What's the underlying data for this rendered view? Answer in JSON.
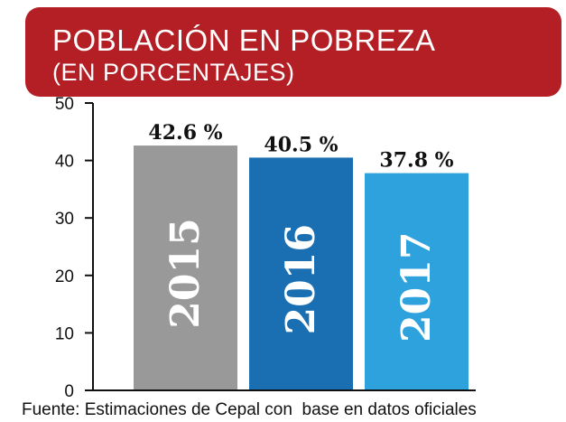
{
  "chart_data": {
    "type": "bar",
    "title": "POBLACIÓN EN POBREZA",
    "subtitle": "(EN PORCENTAJES)",
    "categories": [
      "2015",
      "2016",
      "2017"
    ],
    "values": [
      42.6,
      40.5,
      37.8
    ],
    "value_labels": [
      "42.6 %",
      "40.5 %",
      "37.8 %"
    ],
    "bar_colors": [
      "#999999",
      "#1a6fb3",
      "#2ea2dd"
    ],
    "ylim": [
      0,
      50
    ],
    "yticks": [
      0,
      10,
      20,
      30,
      40,
      50
    ],
    "xlabel": "",
    "ylabel": "",
    "grid": false,
    "legend": "none"
  },
  "colors": {
    "header_background": "#b31f24",
    "header_text": "#ffffff",
    "axis": "#111111",
    "bar_text": "#ffffff"
  },
  "source": "Fuente: Estimaciones de Cepal con  base en datos oficiales"
}
